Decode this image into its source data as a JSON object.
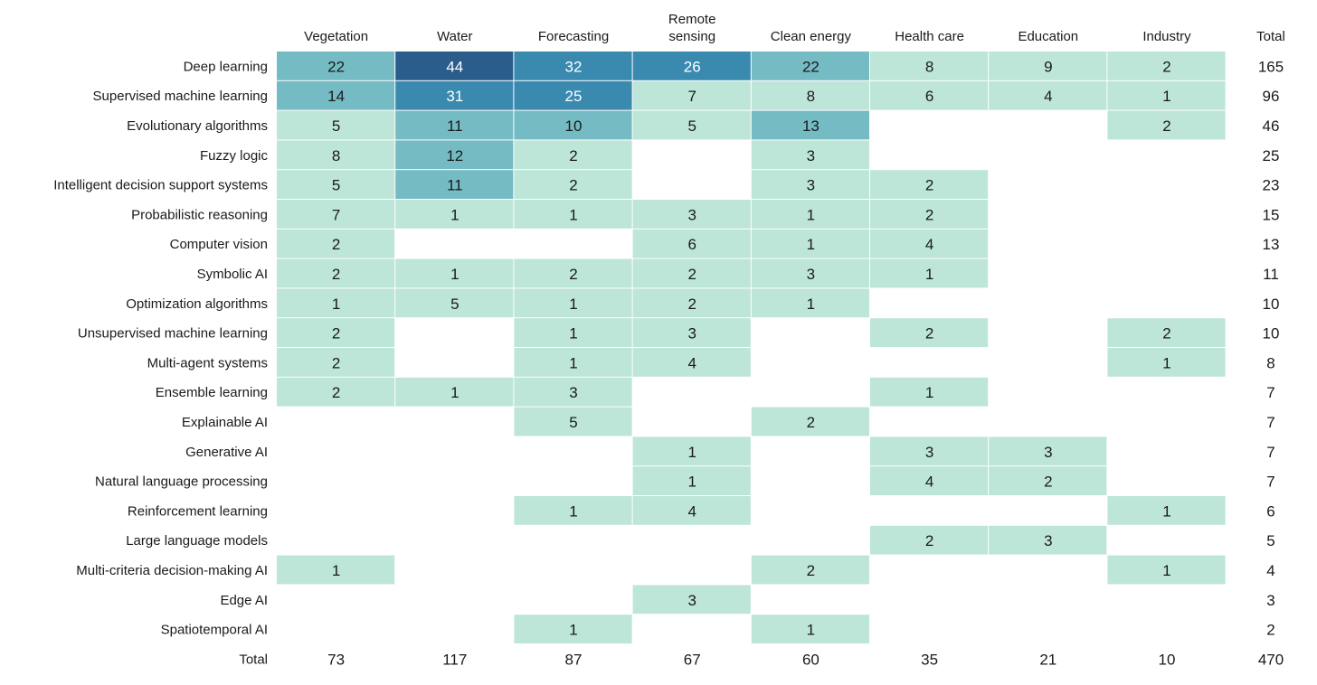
{
  "chart_data": {
    "type": "heatmap",
    "columns": [
      "Vegetation",
      "Water",
      "Forecasting",
      "Remote sensing",
      "Clean energy",
      "Health care",
      "Education",
      "Industry"
    ],
    "total_label": "Total",
    "rows": [
      {
        "label": "Deep learning",
        "values": [
          22,
          44,
          32,
          26,
          22,
          8,
          9,
          2
        ],
        "total": 165
      },
      {
        "label": "Supervised machine learning",
        "values": [
          14,
          31,
          25,
          7,
          8,
          6,
          4,
          1
        ],
        "total": 96
      },
      {
        "label": "Evolutionary algorithms",
        "values": [
          5,
          11,
          10,
          5,
          13,
          null,
          null,
          2
        ],
        "total": 46
      },
      {
        "label": "Fuzzy logic",
        "values": [
          8,
          12,
          2,
          null,
          3,
          null,
          null,
          null
        ],
        "total": 25
      },
      {
        "label": "Intelligent decision support systems",
        "values": [
          5,
          11,
          2,
          null,
          3,
          2,
          null,
          null
        ],
        "total": 23
      },
      {
        "label": "Probabilistic reasoning",
        "values": [
          7,
          1,
          1,
          3,
          1,
          2,
          null,
          null
        ],
        "total": 15
      },
      {
        "label": "Computer vision",
        "values": [
          2,
          null,
          null,
          6,
          1,
          4,
          null,
          null
        ],
        "total": 13
      },
      {
        "label": "Symbolic AI",
        "values": [
          2,
          1,
          2,
          2,
          3,
          1,
          null,
          null
        ],
        "total": 11
      },
      {
        "label": "Optimization algorithms",
        "values": [
          1,
          5,
          1,
          2,
          1,
          null,
          null,
          null
        ],
        "total": 10
      },
      {
        "label": "Unsupervised machine learning",
        "values": [
          2,
          null,
          1,
          3,
          null,
          2,
          null,
          2
        ],
        "total": 10
      },
      {
        "label": "Multi-agent systems",
        "values": [
          2,
          null,
          1,
          4,
          null,
          null,
          null,
          1
        ],
        "total": 8
      },
      {
        "label": "Ensemble learning",
        "values": [
          2,
          1,
          3,
          null,
          null,
          1,
          null,
          null
        ],
        "total": 7
      },
      {
        "label": "Explainable AI",
        "values": [
          null,
          null,
          5,
          null,
          2,
          null,
          null,
          null
        ],
        "total": 7
      },
      {
        "label": "Generative AI",
        "values": [
          null,
          null,
          null,
          1,
          null,
          3,
          3,
          null
        ],
        "total": 7
      },
      {
        "label": "Natural language processing",
        "values": [
          null,
          null,
          null,
          1,
          null,
          4,
          2,
          null
        ],
        "total": 7
      },
      {
        "label": "Reinforcement learning",
        "values": [
          null,
          null,
          1,
          4,
          null,
          null,
          null,
          1
        ],
        "total": 6
      },
      {
        "label": "Large language models",
        "values": [
          null,
          null,
          null,
          null,
          null,
          2,
          3,
          null
        ],
        "total": 5
      },
      {
        "label": "Multi-criteria decision-making AI",
        "values": [
          1,
          null,
          null,
          null,
          2,
          null,
          null,
          1
        ],
        "total": 4
      },
      {
        "label": "Edge AI",
        "values": [
          null,
          null,
          null,
          3,
          null,
          null,
          null,
          null
        ],
        "total": 3
      },
      {
        "label": "Spatiotemporal AI",
        "values": [
          null,
          null,
          1,
          null,
          1,
          null,
          null,
          null
        ],
        "total": 2
      }
    ],
    "column_totals": [
      73,
      117,
      87,
      67,
      60,
      35,
      21,
      10
    ],
    "grand_total": 470,
    "color_scale": [
      {
        "max": 9,
        "color": "#bde5d8"
      },
      {
        "max": 22,
        "color": "#74bbc4"
      },
      {
        "max": 32,
        "color": "#3a8ab0"
      },
      {
        "max": 44,
        "color": "#2a5d8c"
      }
    ]
  }
}
